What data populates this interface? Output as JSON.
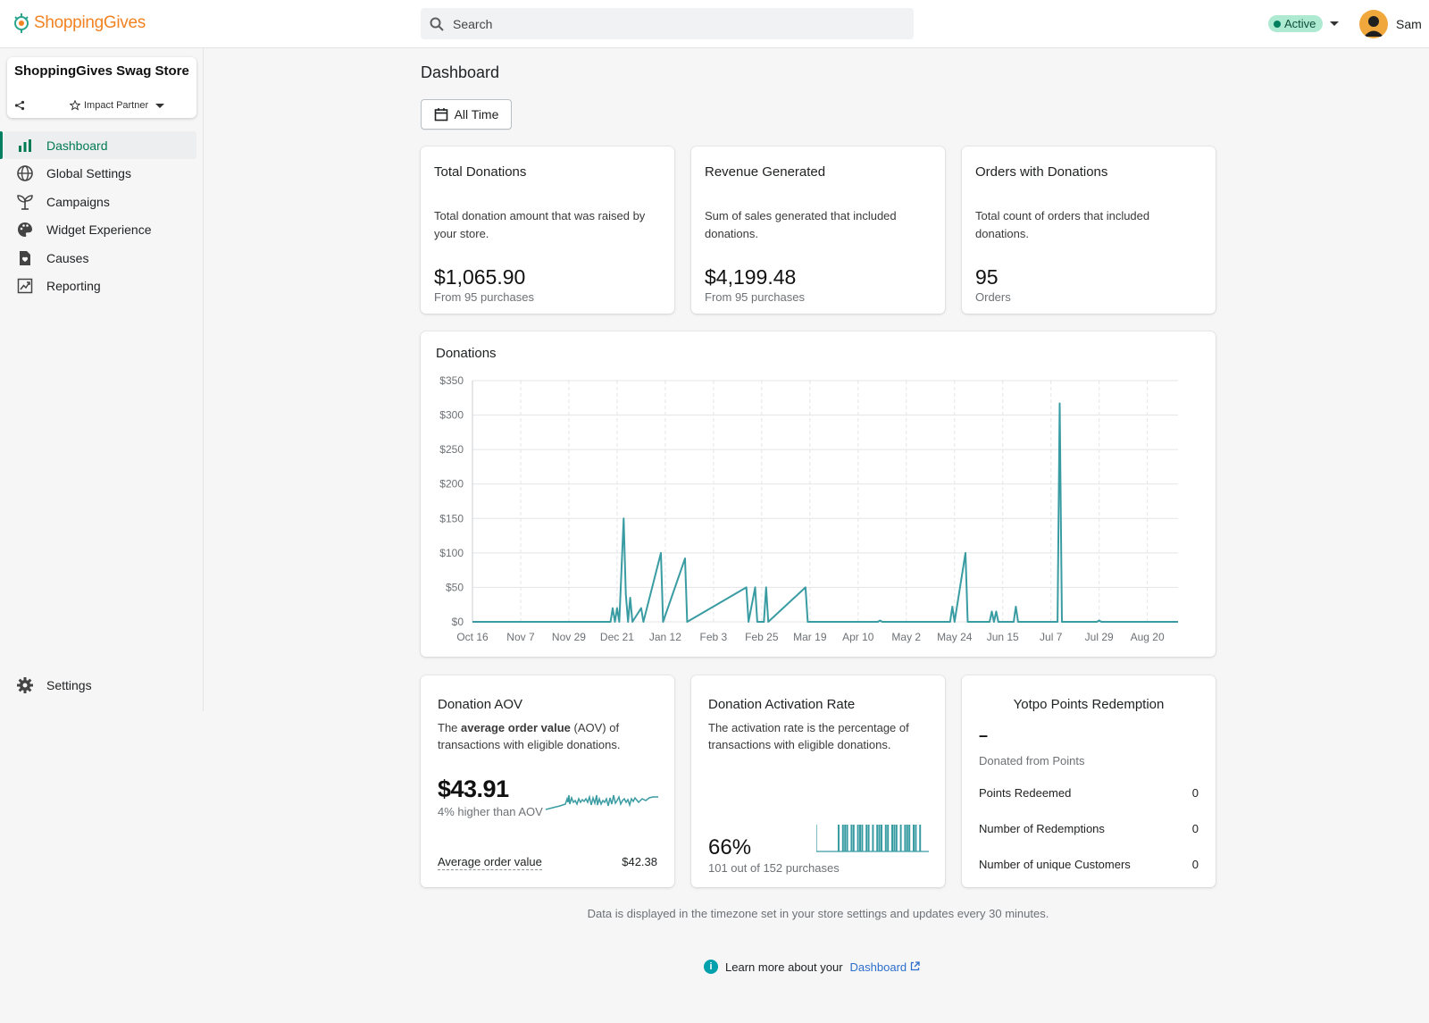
{
  "app": {
    "brand": "ShoppingGives"
  },
  "search": {
    "placeholder": "Search"
  },
  "status": {
    "label": "Active",
    "color": "#007f5f"
  },
  "user": {
    "name": "Sam"
  },
  "store": {
    "name": "ShoppingGives Swag Store",
    "role": "Impact Partner"
  },
  "sidebar": {
    "items": [
      {
        "label": "Dashboard",
        "icon": "bar-chart-icon",
        "active": true
      },
      {
        "label": "Global Settings",
        "icon": "globe-icon"
      },
      {
        "label": "Campaigns",
        "icon": "sprout-icon"
      },
      {
        "label": "Widget Experience",
        "icon": "palette-icon"
      },
      {
        "label": "Causes",
        "icon": "heart-document-icon"
      },
      {
        "label": "Reporting",
        "icon": "trend-report-icon"
      }
    ],
    "settings_label": "Settings"
  },
  "page": {
    "title": "Dashboard",
    "time_filter": "All Time"
  },
  "stats": [
    {
      "title": "Total Donations",
      "desc": "Total donation amount that was raised by your store.",
      "value": "$1,065.90",
      "sub": "From 95 purchases"
    },
    {
      "title": "Revenue Generated",
      "desc": "Sum of sales generated that included donations.",
      "value": "$4,199.48",
      "sub": "From 95 purchases"
    },
    {
      "title": "Orders with Donations",
      "desc": "Total count of orders that included donations.",
      "value": "95",
      "sub": "Orders"
    }
  ],
  "chart_data": {
    "type": "line",
    "title": "Donations",
    "xlabel": "",
    "ylabel": "",
    "y_ticks": [
      "$0",
      "$50",
      "$100",
      "$150",
      "$200",
      "$250",
      "$300",
      "$350"
    ],
    "ylim": [
      0,
      350
    ],
    "x_ticks": [
      "Oct 16",
      "Nov 7",
      "Nov 29",
      "Dec 21",
      "Jan 12",
      "Feb 3",
      "Feb 25",
      "Mar 19",
      "Apr 10",
      "May 2",
      "May 24",
      "Jun 15",
      "Jul 7",
      "Jul 29",
      "Aug 20"
    ],
    "x_range_days": [
      0,
      322
    ],
    "grid": true,
    "color": "#3a9ca3",
    "series": [
      {
        "points": [
          [
            0,
            0
          ],
          [
            63,
            0
          ],
          [
            64,
            20
          ],
          [
            65,
            0
          ],
          [
            66,
            20
          ],
          [
            67,
            0
          ],
          [
            69,
            150
          ],
          [
            70,
            40
          ],
          [
            71,
            0
          ],
          [
            72,
            35
          ],
          [
            73,
            0
          ],
          [
            77,
            20
          ],
          [
            78,
            0
          ],
          [
            86,
            100
          ],
          [
            87,
            0
          ],
          [
            97,
            92
          ],
          [
            98,
            0
          ],
          [
            125,
            50
          ],
          [
            126,
            0
          ],
          [
            129,
            50
          ],
          [
            130,
            0
          ],
          [
            133,
            0
          ],
          [
            134,
            50
          ],
          [
            135,
            0
          ],
          [
            152,
            50
          ],
          [
            153,
            0
          ],
          [
            185,
            0
          ],
          [
            186,
            2
          ],
          [
            187,
            0
          ],
          [
            218,
            0
          ],
          [
            219,
            22
          ],
          [
            220,
            0
          ],
          [
            225,
            100
          ],
          [
            226,
            0
          ],
          [
            236,
            0
          ],
          [
            237,
            15
          ],
          [
            238,
            0
          ],
          [
            239,
            15
          ],
          [
            240,
            0
          ],
          [
            247,
            0
          ],
          [
            248,
            22
          ],
          [
            249,
            0
          ],
          [
            267,
            0
          ],
          [
            268,
            317
          ],
          [
            269,
            0
          ],
          [
            285,
            0
          ],
          [
            286,
            2
          ],
          [
            287,
            0
          ],
          [
            322,
            0
          ]
        ]
      }
    ]
  },
  "aov": {
    "title": "Donation AOV",
    "desc_pre": "The ",
    "desc_bold": "average order value",
    "desc_post": " (AOV) of transactions with eligible donations.",
    "value": "$43.91",
    "sub": "4% higher than AOV",
    "row_label": "Average order value",
    "row_value": "$42.38"
  },
  "activation": {
    "title": "Donation Activation Rate",
    "desc": "The activation rate is the percentage of transactions with eligible donations.",
    "value": "66%",
    "sub": "101 out of 152 purchases"
  },
  "yotpo": {
    "title": "Yotpo Points Redemption",
    "value": "–",
    "sub": "Donated from Points",
    "rows": [
      {
        "label": "Points Redeemed",
        "value": "0"
      },
      {
        "label": "Number of Redemptions",
        "value": "0"
      },
      {
        "label": "Number of unique Customers",
        "value": "0"
      }
    ]
  },
  "footer": {
    "note": "Data is displayed in the timezone set in your store settings and updates every 30 minutes.",
    "learn_pre": "Learn more about your",
    "learn_link": "Dashboard"
  }
}
